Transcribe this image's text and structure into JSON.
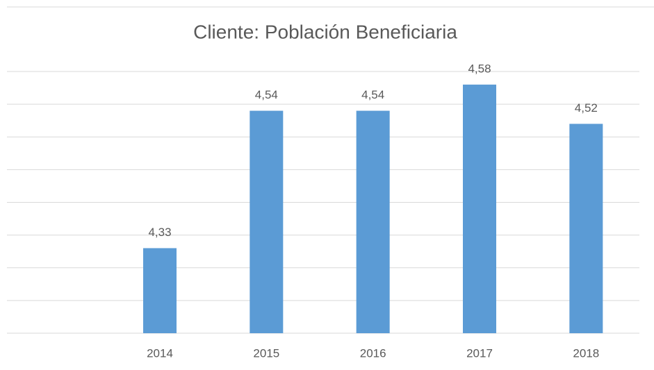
{
  "chart_data": {
    "type": "bar",
    "title": "Cliente: Población Beneficiaria",
    "categories": [
      null,
      "2014",
      "2015",
      "2016",
      "2017",
      "2018"
    ],
    "values": [
      null,
      4.33,
      4.54,
      4.54,
      4.58,
      4.52
    ],
    "value_labels": [
      null,
      "4,33",
      "4,54",
      "4,54",
      "4,58",
      "4,52"
    ],
    "color": "#5b9bd5",
    "ylim": [
      4.2,
      4.6
    ],
    "yticks": [
      4.2,
      4.25,
      4.3,
      4.35,
      4.4,
      4.45,
      4.5,
      4.55,
      4.6
    ],
    "grid": true
  }
}
